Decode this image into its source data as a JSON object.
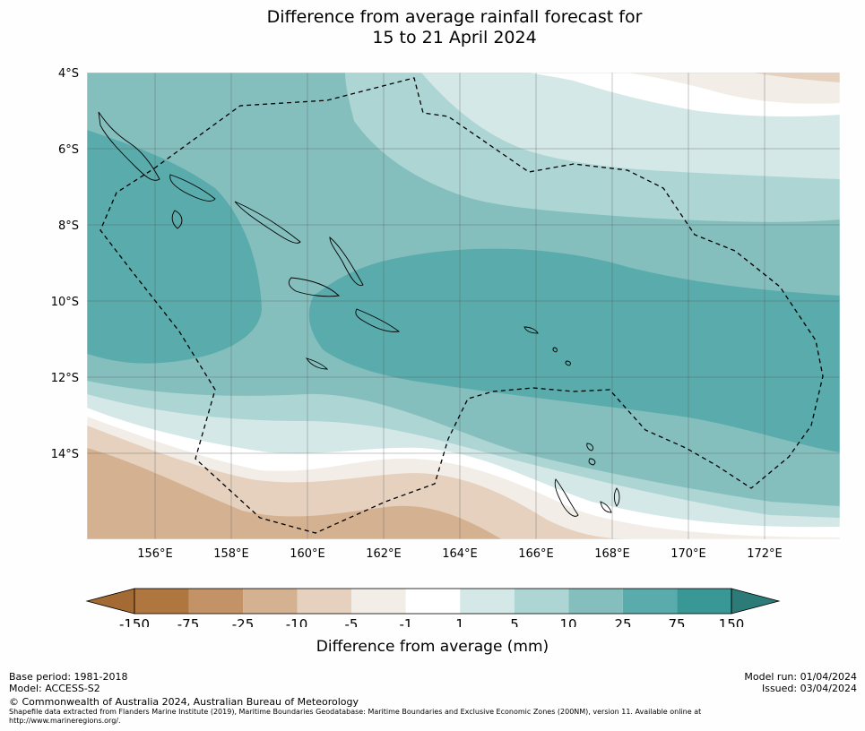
{
  "title": {
    "line1": "Difference from average rainfall forecast for",
    "line2": "15 to 21 April 2024"
  },
  "map": {
    "lat_labels": [
      "4°S",
      "6°S",
      "8°S",
      "10°S",
      "12°S",
      "14°S"
    ],
    "lon_labels": [
      "156°E",
      "158°E",
      "160°E",
      "162°E",
      "164°E",
      "166°E",
      "168°E",
      "170°E",
      "172°E"
    ],
    "extent": {
      "lon": [
        154.2,
        174.0
      ],
      "lat": [
        -4.0,
        -16.3
      ]
    },
    "dashed_boundary": "Exclusive Economic Zone (200NM)"
  },
  "colorbar": {
    "label": "Difference from average (mm)",
    "ticks": [
      "-150",
      "-75",
      "-25",
      "-10",
      "-5",
      "-1",
      "1",
      "5",
      "10",
      "25",
      "75",
      "150"
    ],
    "colors": [
      "#a46a33",
      "#b0763f",
      "#c39266",
      "#d4b190",
      "#e5d1be",
      "#f3ede7",
      "#ffffff",
      "#d4e8e7",
      "#acd5d4",
      "#84bfbe",
      "#5aabab",
      "#399895",
      "#2c7b79"
    ]
  },
  "footer": {
    "base_period": "Base period: 1981-2018",
    "model": "Model: ACCESS-S2",
    "copyright": "© Commonwealth of Australia 2024, Australian Bureau of Meteorology",
    "shapefile_line1": "Shapefile data extracted from Flanders Marine Institute (2019), Maritime Boundaries Geodatabase: Maritime Boundaries and Exclusive Economic Zones (200NM), version 11. Available online at",
    "shapefile_line2": "http://www.marineregions.org/.",
    "model_run": "Model run: 01/04/2024",
    "issued": "Issued: 03/04/2024"
  }
}
